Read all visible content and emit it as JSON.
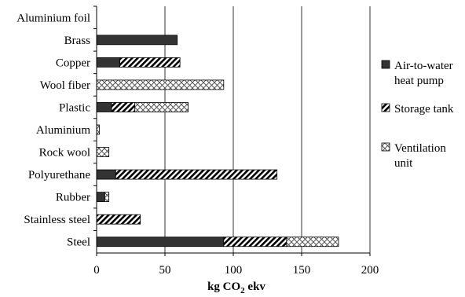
{
  "chart_data": {
    "type": "bar",
    "orientation": "horizontal",
    "stacked": true,
    "categories": [
      "Aluminium foil",
      "Brass",
      "Copper",
      "Wool fiber",
      "Plastic",
      "Aluminium",
      "Rock wool",
      "Polyurethane",
      "Rubber",
      "Stainless steel",
      "Steel"
    ],
    "series": [
      {
        "name": "Air-to-water heat pump",
        "pattern": "solid",
        "color": "#333333",
        "values": [
          0,
          59,
          17,
          0,
          11,
          0,
          0,
          14,
          6,
          0,
          93
        ]
      },
      {
        "name": "Storage tank",
        "pattern": "diagonal",
        "color": "#000000",
        "values": [
          0,
          0,
          44,
          0,
          17,
          0,
          0,
          118,
          0,
          32,
          46
        ]
      },
      {
        "name": "Ventilation unit",
        "pattern": "crosshatch",
        "color": "#000000",
        "values": [
          0,
          0,
          0,
          93,
          39,
          2,
          9,
          0,
          3,
          0,
          38
        ]
      }
    ],
    "xlim": [
      0,
      200
    ],
    "xticks": [
      "0",
      "50",
      "100",
      "150",
      "200"
    ],
    "xlabel_main": "kg CO",
    "xlabel_sub": "2",
    "xlabel_suffix": " ekv",
    "grid": "vertical",
    "legend_position": "right"
  }
}
